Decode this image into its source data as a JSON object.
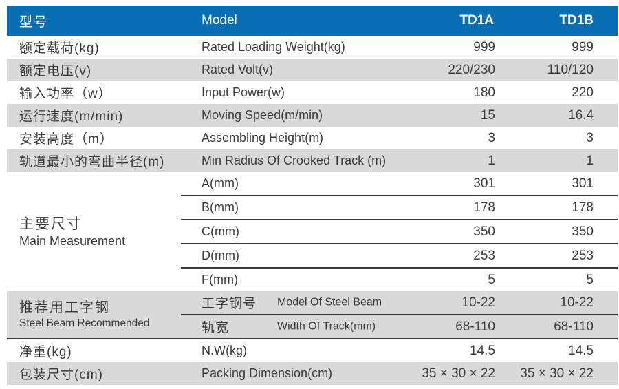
{
  "colors": {
    "header_bg": "#0a6eb4",
    "header_text": "#ffffff",
    "row_shade_bg": "#d9d9d9",
    "row_bg": "#ffffff",
    "body_text": "#3c3c3c",
    "divider_line": "#3e3a39"
  },
  "header": {
    "model_cn": "型号",
    "model_en": "Model",
    "td1a": "TD1A",
    "td1b": "TD1B"
  },
  "spec_rows": [
    {
      "cn": "额定载荷(kg)",
      "en": "Rated Loading Weight(kg)",
      "td1a": "999",
      "td1b": "999"
    },
    {
      "cn": "额定电压(v)",
      "en": "Rated Volt(v)",
      "td1a": "220/230",
      "td1b": "110/120"
    },
    {
      "cn": "输入功率（w）",
      "en": "Input Power(w)",
      "td1a": "180",
      "td1b": "220"
    },
    {
      "cn": "运行速度(m/min)",
      "en": "Moving Speed(m/min)",
      "td1a": "15",
      "td1b": "16.4"
    },
    {
      "cn": "安装高度（m）",
      "en": "Assembling Height(m)",
      "td1a": "3",
      "td1b": "3"
    },
    {
      "cn": "轨道最小的弯曲半径(m)",
      "en": "Min Radius Of Crooked Track (m)",
      "td1a": "1",
      "td1b": "1"
    }
  ],
  "measurement": {
    "cn": "主要尺寸",
    "en": "Main Measurement",
    "rows": [
      {
        "label": "A(mm)",
        "td1a": "301",
        "td1b": "301"
      },
      {
        "label": "B(mm)",
        "td1a": "178",
        "td1b": "178"
      },
      {
        "label": "C(mm)",
        "td1a": "350",
        "td1b": "350"
      },
      {
        "label": "D(mm)",
        "td1a": "253",
        "td1b": "253"
      },
      {
        "label": "F(mm)",
        "td1a": "5",
        "td1b": "5"
      }
    ]
  },
  "steel_beam": {
    "cn": "推荐用工字钢",
    "en": "Steel Beam Recommended",
    "rows": [
      {
        "cn": "工字钢号",
        "en": "Model Of Steel Beam",
        "td1a": "10-22",
        "td1b": "10-22"
      },
      {
        "cn": "轨宽",
        "en": "Width Of Track(mm)",
        "td1a": "68-110",
        "td1b": "68-110"
      }
    ]
  },
  "bottom_rows": [
    {
      "cn": "净重(kg)",
      "en": "N.W(kg)",
      "td1a": "14.5",
      "td1b": "14.5"
    },
    {
      "cn": "包装尺寸(cm)",
      "en": "Packing Dimension(cm)",
      "td1a": "35 × 30 × 22",
      "td1b": "35 × 30 × 22"
    }
  ]
}
